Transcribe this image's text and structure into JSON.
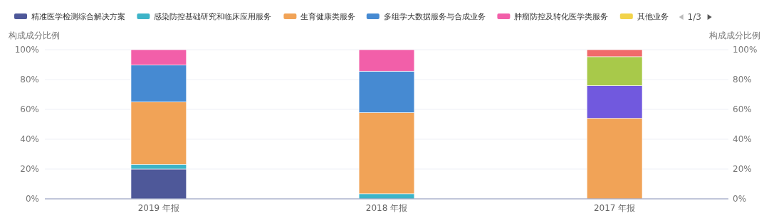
{
  "chart_data": {
    "type": "bar",
    "stacked": true,
    "categories": [
      "2019 年报",
      "2018 年报",
      "2017 年报"
    ],
    "ylabel": "构成成分比例",
    "y2label": "构成成分比例",
    "ylim": [
      0,
      100
    ],
    "yticks": [
      {
        "value": 0,
        "label": "0%"
      },
      {
        "value": 20,
        "label": "20%"
      },
      {
        "value": 40,
        "label": "40%"
      },
      {
        "value": 60,
        "label": "60%"
      },
      {
        "value": 80,
        "label": "80%"
      },
      {
        "value": 100,
        "label": "100%"
      }
    ],
    "y2lim": [
      0,
      100
    ],
    "y2ticks": [
      {
        "value": 0,
        "label": "0%"
      },
      {
        "value": 20,
        "label": "20%"
      },
      {
        "value": 40,
        "label": "40%"
      },
      {
        "value": 60,
        "label": "60%"
      },
      {
        "value": 80,
        "label": "80%"
      },
      {
        "value": 100,
        "label": "100%"
      }
    ],
    "grid": "y",
    "legend": "top",
    "annotations": [
      "1/3"
    ],
    "series": [
      {
        "name": "精准医学检测综合解决方案",
        "color": "#4e5899",
        "values": [
          20.0,
          null,
          null
        ]
      },
      {
        "name": "感染防控基础研究和临床应用服务",
        "color": "#3db4c8",
        "values": [
          3.1,
          3.4,
          null
        ]
      },
      {
        "name": "生育健康类服务",
        "color": "#f1a357",
        "values": [
          41.9,
          54.4,
          54.0
        ]
      },
      {
        "name": "多组学大数据服务与合成业务",
        "color": "#468ad2",
        "values": [
          24.7,
          27.8,
          null
        ]
      },
      {
        "name": "肿瘤防控及转化医学类服务",
        "color": "#f25fa9",
        "values": [
          10.3,
          14.4,
          null
        ]
      },
      {
        "name": "其他业务",
        "color": "#f2d34a",
        "values": [
          null,
          null,
          null
        ]
      },
      {
        "color": "#7159de",
        "values": [
          null,
          null,
          21.9
        ]
      },
      {
        "color": "#a8c94a",
        "values": [
          null,
          null,
          19.4
        ]
      },
      {
        "color": "#f06a6a",
        "values": [
          null,
          null,
          4.7
        ]
      }
    ]
  }
}
